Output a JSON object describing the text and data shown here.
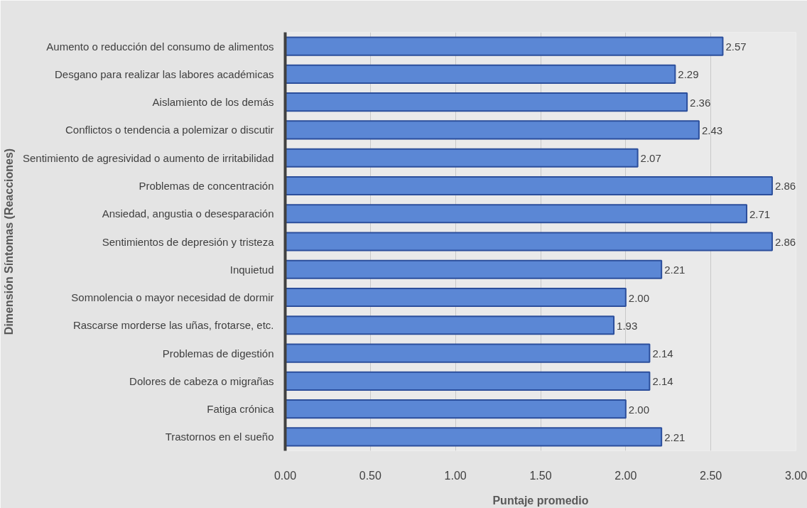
{
  "chart_data": {
    "type": "bar",
    "orientation": "horizontal",
    "categories": [
      "Aumento o reducción del consumo de alimentos",
      "Desgano para realizar las labores académicas",
      "Aislamiento de los demás",
      "Conflictos o tendencia a polemizar o discutir",
      "Sentimiento de agresividad o aumento de irritabilidad",
      "Problemas de concentración",
      "Ansiedad, angustia o desesparación",
      "Sentimientos de depresión y tristeza",
      "Inquietud",
      "Somnolencia o mayor necesidad de dormir",
      "Rascarse morderse las uñas, frotarse, etc.",
      "Problemas de digestión",
      "Dolores de cabeza o migrañas",
      "Fatiga crónica",
      "Trastornos en el sueño"
    ],
    "values": [
      2.57,
      2.29,
      2.36,
      2.43,
      2.07,
      2.86,
      2.71,
      2.86,
      2.21,
      2.0,
      1.93,
      2.14,
      2.14,
      2.0,
      2.21
    ],
    "value_labels": [
      "2.57",
      "2.29",
      "2.36",
      "2.43",
      "2.07",
      "2.86",
      "2.71",
      "2.86",
      "2.21",
      "2.00",
      "1.93",
      "2.14",
      "2.14",
      "2.00",
      "2.21"
    ],
    "color": "#5b87d5",
    "xlim": [
      0,
      3
    ],
    "xticks": [
      {
        "value": 0,
        "label": "0.00"
      },
      {
        "value": 0.5,
        "label": "0.50"
      },
      {
        "value": 1,
        "label": "1.00"
      },
      {
        "value": 1.5,
        "label": "1.50"
      },
      {
        "value": 2,
        "label": "2.00"
      },
      {
        "value": 2.5,
        "label": "2.50"
      },
      {
        "value": 3,
        "label": "3.00"
      }
    ],
    "xlabel": "Puntaje promedio",
    "ylabel": "Dimensión Síntomas (Reacciones)",
    "grid": "x"
  }
}
